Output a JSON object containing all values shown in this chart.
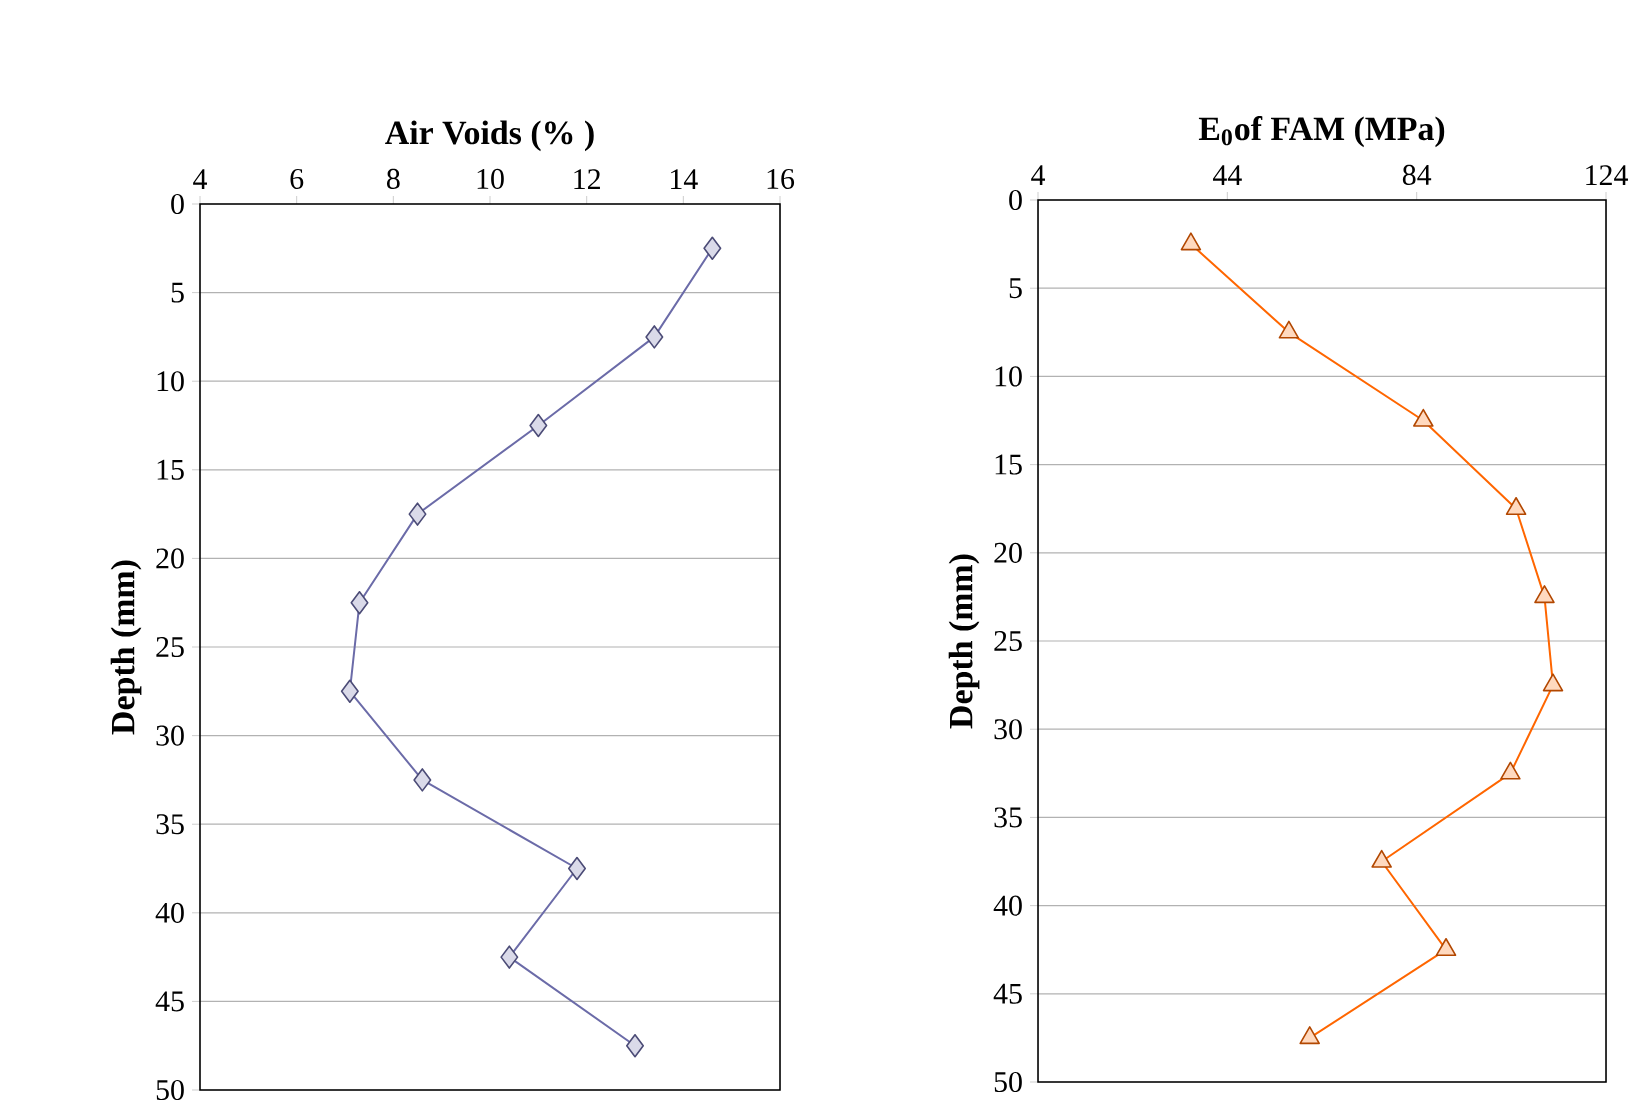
{
  "chart_data": [
    {
      "type": "line",
      "xlabel": "Air Voids (% )",
      "ylabel": "Depth (mm)",
      "xlim": [
        4,
        16
      ],
      "xticks": [
        4,
        6,
        8,
        10,
        12,
        14,
        16
      ],
      "ylim": [
        50,
        0
      ],
      "yticks": [
        0,
        5,
        10,
        15,
        20,
        25,
        30,
        35,
        40,
        45,
        50
      ],
      "grid": "y",
      "marker": "diamond",
      "line_style": "solid",
      "series": [
        {
          "color": "#6b6ba8",
          "x": [
            14.6,
            13.4,
            11.0,
            8.5,
            7.3,
            7.1,
            8.6,
            11.8,
            10.4,
            13.0
          ],
          "values": [
            2.5,
            7.5,
            12.5,
            17.5,
            22.5,
            27.5,
            32.5,
            37.5,
            42.5,
            47.5
          ]
        }
      ]
    },
    {
      "type": "line",
      "xlabel": "E$_{0}$of FAM (MPa)",
      "ylabel": "Depth (mm)",
      "xlim": [
        4,
        124
      ],
      "xticks": [
        4,
        44,
        84,
        124
      ],
      "ylim": [
        50,
        0
      ],
      "yticks": [
        0,
        5,
        10,
        15,
        20,
        25,
        30,
        35,
        40,
        45,
        50
      ],
      "grid": "y",
      "marker": "triangle",
      "line_style": "solid",
      "series": [
        {
          "color": "#ff6600",
          "x": [
            36.3,
            57.0,
            85.4,
            105.0,
            111.0,
            112.8,
            103.8,
            76.6,
            90.2,
            61.4
          ],
          "values": [
            2.5,
            7.5,
            12.5,
            17.5,
            22.5,
            27.5,
            32.5,
            37.5,
            42.5,
            47.5
          ]
        }
      ]
    }
  ]
}
